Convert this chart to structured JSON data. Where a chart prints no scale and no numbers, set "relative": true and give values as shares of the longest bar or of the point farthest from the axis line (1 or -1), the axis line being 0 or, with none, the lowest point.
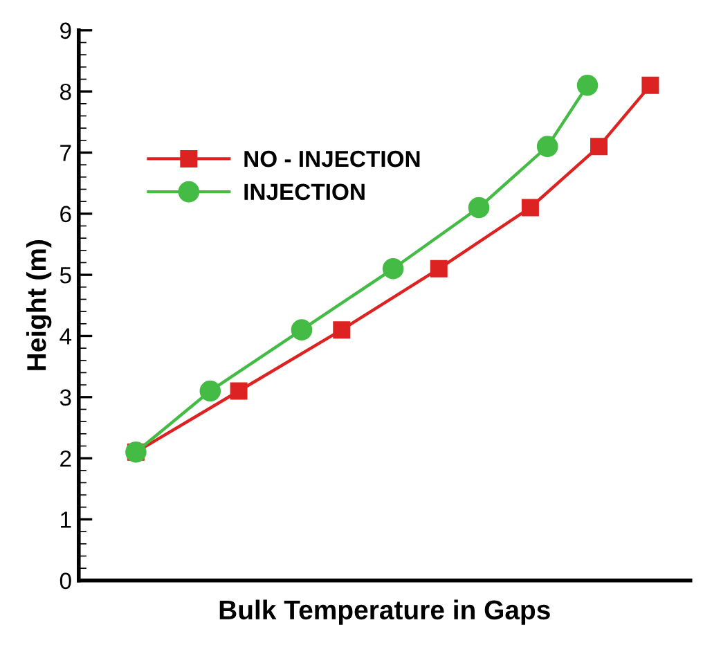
{
  "chart_data": {
    "type": "line",
    "orientation": "horizontal",
    "relative": true,
    "xlabel": "Bulk Temperature in Gaps",
    "ylabel": "Height (m)",
    "ylim": [
      0,
      9
    ],
    "yticks": [
      0,
      1,
      2,
      3,
      4,
      5,
      6,
      7,
      8,
      9
    ],
    "legend": "top left",
    "line_style": "solid",
    "series": [
      {
        "name": "NO - INJECTION",
        "color": "#dd2222",
        "marker": "square",
        "x": [
          2.1,
          3.1,
          4.1,
          5.1,
          6.1,
          7.1,
          8.1
        ],
        "values": [
          0.1,
          0.28,
          0.46,
          0.63,
          0.79,
          0.91,
          1
        ]
      },
      {
        "name": "INJECTION",
        "color": "#44bb44",
        "marker": "circle",
        "x": [
          2.1,
          3.1,
          4.1,
          5.1,
          6.1,
          7.1,
          8.1
        ],
        "values": [
          0.1,
          0.23,
          0.39,
          0.55,
          0.7,
          0.82,
          0.89
        ]
      }
    ]
  }
}
